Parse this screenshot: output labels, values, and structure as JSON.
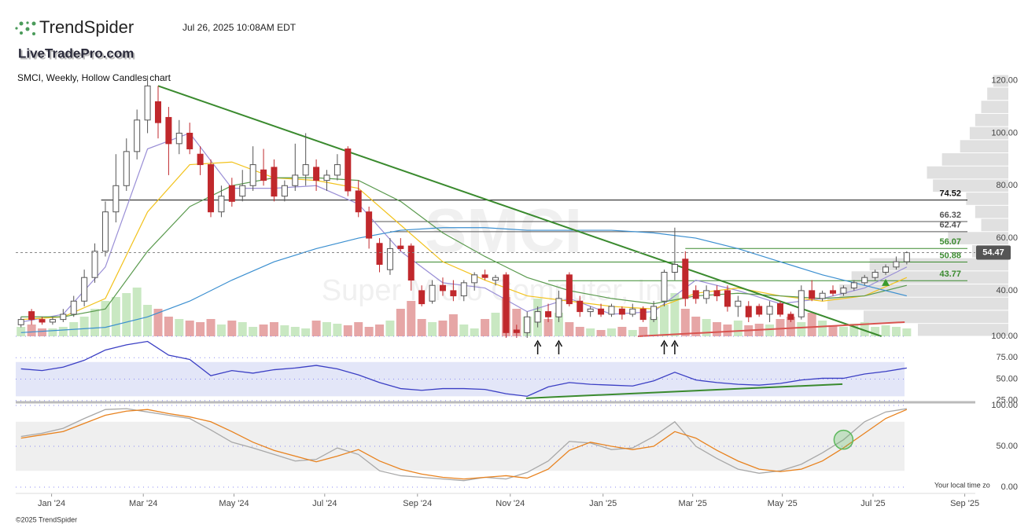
{
  "header": {
    "brand": "TrendSpider",
    "timestamp": "Jul 26, 2025 10:08AM EDT",
    "site": "LiveTradePro.com",
    "copyright": "©2025 TrendSpider",
    "timezone_note": "Your local time zo"
  },
  "chart_data": [
    {
      "type": "candlestick",
      "title": "SMCI, Weekly, Hollow Candles chart",
      "symbol": "SMCI",
      "company": "Super Micro Computer, Inc.",
      "xlim": [
        -0.5,
        90.5
      ],
      "xticks": [
        {
          "value": 2.9,
          "label": "Jan '24"
        },
        {
          "value": 11.6,
          "label": "Mar '24"
        },
        {
          "value": 20.2,
          "label": "May '24"
        },
        {
          "value": 28.8,
          "label": "Jul '24"
        },
        {
          "value": 37.6,
          "label": "Sep '24"
        },
        {
          "value": 46.4,
          "label": "Nov '24"
        },
        {
          "value": 55.2,
          "label": "Jan '25"
        },
        {
          "value": 63.7,
          "label": "Mar '25"
        },
        {
          "value": 72.2,
          "label": "May '25"
        },
        {
          "value": 80.8,
          "label": "Jul '25"
        },
        {
          "value": 89.5,
          "label": "Sep '25"
        }
      ],
      "ylim": [
        22.6,
        122.3
      ],
      "yticks": [
        {
          "value": 40,
          "label": "40.00"
        },
        {
          "value": 60,
          "label": "60.00"
        },
        {
          "value": 80,
          "label": "80.00"
        },
        {
          "value": 100,
          "label": "100.00"
        },
        {
          "value": 120,
          "label": "120.00"
        }
      ],
      "up_color": "#555555",
      "down_color": "#c0282c",
      "candles": [
        [
          27,
          30,
          26,
          29
        ],
        [
          32,
          33,
          27,
          29
        ],
        [
          29,
          30,
          27,
          28
        ],
        [
          28,
          30,
          27,
          29
        ],
        [
          29,
          33,
          28,
          31
        ],
        [
          31,
          38,
          30,
          36
        ],
        [
          36,
          48,
          34,
          45
        ],
        [
          45,
          58,
          43,
          55
        ],
        [
          55,
          74,
          53,
          70
        ],
        [
          70,
          92,
          66,
          80
        ],
        [
          80,
          98,
          78,
          93
        ],
        [
          93,
          109,
          90,
          105
        ],
        [
          105,
          122,
          100,
          118
        ],
        [
          112,
          118,
          98,
          104
        ],
        [
          106,
          110,
          84,
          96
        ],
        [
          96,
          105,
          92,
          100
        ],
        [
          100,
          104,
          92,
          94
        ],
        [
          92,
          95,
          84,
          88
        ],
        [
          88,
          90,
          68,
          70
        ],
        [
          70,
          80,
          68,
          76
        ],
        [
          80,
          83,
          72,
          74
        ],
        [
          76,
          86,
          74,
          80
        ],
        [
          80,
          95,
          78,
          88
        ],
        [
          86,
          94,
          80,
          82
        ],
        [
          87,
          90,
          74,
          76
        ],
        [
          76,
          82,
          74,
          80
        ],
        [
          80,
          96,
          78,
          84
        ],
        [
          84,
          100,
          80,
          88
        ],
        [
          87,
          90,
          78,
          82
        ],
        [
          82,
          86,
          78,
          84
        ],
        [
          84,
          92,
          82,
          88
        ],
        [
          94,
          95,
          76,
          78
        ],
        [
          78,
          82,
          68,
          70
        ],
        [
          70,
          72,
          56,
          60
        ],
        [
          58,
          60,
          47,
          50
        ],
        [
          48,
          60,
          46,
          56
        ],
        [
          57,
          60,
          55,
          56
        ],
        [
          57,
          58,
          40,
          44
        ],
        [
          40,
          42,
          34,
          35
        ],
        [
          36,
          44,
          35,
          42
        ],
        [
          42,
          45,
          38,
          40
        ],
        [
          40,
          44,
          36,
          38
        ],
        [
          38,
          44,
          36,
          43
        ],
        [
          43,
          47,
          40,
          46
        ],
        [
          46,
          48,
          44,
          45
        ],
        [
          44,
          46,
          42,
          45
        ],
        [
          46,
          47,
          22,
          24
        ],
        [
          25,
          27,
          22,
          24
        ],
        [
          24,
          32,
          22,
          30
        ],
        [
          28,
          34,
          26,
          32
        ],
        [
          32,
          35,
          28,
          30
        ],
        [
          30,
          40,
          28,
          37
        ],
        [
          46,
          47,
          34,
          35
        ],
        [
          36,
          38,
          30,
          32
        ],
        [
          32,
          34,
          30,
          33
        ],
        [
          33,
          35,
          30,
          31
        ],
        [
          31,
          35,
          30,
          34
        ],
        [
          33,
          34,
          29,
          31
        ],
        [
          31,
          35,
          30,
          33
        ],
        [
          33,
          34,
          28,
          29
        ],
        [
          29,
          36,
          28,
          34
        ],
        [
          36,
          48,
          34,
          47
        ],
        [
          47,
          64,
          44,
          50
        ],
        [
          52,
          55,
          34,
          37
        ],
        [
          40,
          42,
          35,
          37
        ],
        [
          37,
          42,
          35,
          40
        ],
        [
          40,
          42,
          36,
          38
        ],
        [
          40,
          42,
          32,
          34
        ],
        [
          34,
          38,
          30,
          36
        ],
        [
          34,
          36,
          28,
          30
        ],
        [
          34,
          35,
          30,
          31
        ],
        [
          31,
          36,
          28,
          34
        ],
        [
          35,
          36,
          30,
          31
        ],
        [
          31,
          32,
          28,
          29
        ],
        [
          30,
          42,
          29,
          40
        ],
        [
          40,
          44,
          36,
          37
        ],
        [
          37,
          40,
          36,
          39
        ],
        [
          40,
          42,
          38,
          39
        ],
        [
          39,
          42,
          38,
          41
        ],
        [
          41,
          44,
          40,
          43
        ],
        [
          43,
          46,
          42,
          45
        ],
        [
          45,
          48,
          44,
          47
        ],
        [
          47,
          50,
          46,
          49
        ],
        [
          49,
          53,
          48,
          51
        ],
        [
          51,
          55,
          50,
          54.47
        ]
      ],
      "volume": {
        "up_color": "#c9e8c2",
        "down_color": "#e6a6a6",
        "values": [
          12,
          15,
          10,
          10,
          12,
          18,
          25,
          35,
          45,
          50,
          55,
          62,
          40,
          35,
          25,
          22,
          20,
          18,
          22,
          15,
          20,
          18,
          12,
          15,
          18,
          14,
          12,
          10,
          20,
          18,
          16,
          14,
          18,
          12,
          15,
          20,
          35,
          45,
          22,
          18,
          20,
          28,
          15,
          10,
          22,
          30,
          50,
          35,
          25,
          48,
          22,
          30,
          18,
          12,
          10,
          8,
          10,
          12,
          8,
          12,
          25,
          40,
          55,
          35,
          25,
          22,
          18,
          15,
          20,
          14,
          16,
          15,
          22,
          25,
          18,
          30,
          20,
          14,
          12,
          16,
          18,
          12,
          14,
          12,
          10
        ]
      },
      "volume_profile": {
        "color": "#d6d6d6",
        "bins": [
          22.6,
          27.5,
          32.5,
          37.5,
          42.5,
          47.5,
          52.5,
          57.5,
          62.5,
          67.5,
          72.5,
          77.5,
          82.5,
          87.5,
          92.5,
          97.5,
          102.5,
          107.5,
          112.5,
          117.5,
          122.3
        ],
        "values": [
          150,
          240,
          300,
          280,
          260,
          230,
          60,
          100,
          45,
          55,
          70,
          125,
          135,
          110,
          80,
          64,
          55,
          45,
          35,
          25
        ]
      },
      "ma_x": [
        0,
        4,
        8,
        12,
        16,
        20,
        24,
        28,
        32,
        36,
        40,
        44,
        48,
        52,
        56,
        60,
        64,
        68,
        72,
        76,
        80,
        84
      ],
      "moving_averages": [
        {
          "color": "#9a8fd6",
          "values": [
            28,
            31,
            49,
            94,
            100,
            79,
            79,
            80,
            73,
            55,
            43,
            41,
            32,
            37,
            31,
            32,
            44,
            40,
            35,
            37,
            41,
            49
          ]
        },
        {
          "color": "#f2c21b",
          "values": [
            29,
            30,
            37,
            70,
            88,
            89,
            83,
            82,
            79,
            65,
            51,
            44,
            38,
            36,
            34,
            33,
            39,
            41,
            38,
            36,
            38,
            45
          ]
        },
        {
          "color": "#5a9a4e",
          "values": [
            30,
            30,
            33,
            55,
            72,
            80,
            83,
            83,
            82,
            74,
            62,
            53,
            45,
            40,
            37,
            35,
            38,
            39,
            38,
            37,
            38,
            42
          ]
        },
        {
          "color": "#3b8fd0",
          "values": [
            24,
            25,
            26,
            30,
            36,
            44,
            51,
            56,
            60,
            63,
            64,
            64,
            63,
            63,
            63,
            62,
            60,
            56,
            51,
            46,
            42,
            38
          ]
        }
      ],
      "levels": [
        {
          "value": 74.52,
          "start": 7.6,
          "color": "#111111"
        },
        {
          "value": 66.32,
          "start": 33,
          "color": "#555555"
        },
        {
          "value": 62.47,
          "start": 35,
          "color": "#555555"
        },
        {
          "value": 56.07,
          "start": 63,
          "color": "#3a8a2e"
        },
        {
          "value": 50.88,
          "start": 37,
          "color": "#3a8a2e"
        },
        {
          "value": 43.77,
          "start": 50,
          "color": "#3a8a2e"
        }
      ],
      "last_price": 54.47,
      "trendlines": [
        {
          "from": [
            13,
            118
          ],
          "to": [
            81.6,
            22.6
          ],
          "color": "#3a8a2e"
        },
        {
          "from": [
            58.5,
            22.6
          ],
          "to": [
            83.8,
            28
          ],
          "color": "#d9534f"
        }
      ],
      "arrows": [
        49,
        51,
        61,
        62
      ],
      "signal": {
        "x": 82,
        "y": 43,
        "color": "#3a9a2e"
      }
    },
    {
      "type": "line",
      "x": [
        0,
        2,
        4,
        6,
        8,
        10,
        12,
        14,
        16,
        18,
        20,
        22,
        24,
        26,
        28,
        30,
        32,
        34,
        36,
        38,
        40,
        42,
        44,
        46,
        48,
        50,
        52,
        54,
        56,
        58,
        60,
        62,
        64,
        66,
        68,
        70,
        72,
        74,
        76,
        78,
        80,
        82,
        84
      ],
      "values": [
        62,
        60,
        64,
        72,
        84,
        90,
        94,
        78,
        73,
        54,
        60,
        57,
        61,
        63,
        66,
        62,
        55,
        46,
        39,
        37,
        39,
        39,
        38,
        33,
        30,
        41,
        46,
        44,
        43,
        42,
        48,
        58,
        49,
        46,
        44,
        43,
        45,
        49,
        51,
        51,
        56,
        59,
        63
      ],
      "color": "#3b3fc4",
      "band": [
        30,
        70
      ],
      "band_color": "#e3e6f8",
      "ylim": [
        23,
        100
      ],
      "yticks": [
        {
          "value": 25,
          "label": "25.00"
        },
        {
          "value": 50,
          "label": "50.00"
        },
        {
          "value": 75,
          "label": "75.00"
        },
        {
          "value": 100,
          "label": "100.00"
        }
      ],
      "trendline": {
        "from": [
          47.9,
          27.7
        ],
        "to": [
          77.9,
          44.2
        ],
        "color": "#3a8a2e"
      }
    },
    {
      "type": "line",
      "x": [
        0,
        2,
        4,
        6,
        8,
        10,
        12,
        14,
        16,
        18,
        20,
        22,
        24,
        26,
        28,
        30,
        32,
        34,
        36,
        38,
        40,
        42,
        44,
        46,
        48,
        50,
        52,
        54,
        56,
        58,
        60,
        62,
        64,
        66,
        68,
        70,
        72,
        74,
        76,
        78,
        80,
        82,
        84
      ],
      "series": [
        {
          "color": "#a8a8a8",
          "values": [
            62,
            66,
            72,
            84,
            95,
            96,
            92,
            88,
            84,
            70,
            55,
            48,
            40,
            32,
            34,
            48,
            40,
            20,
            14,
            12,
            10,
            8,
            12,
            10,
            18,
            32,
            56,
            54,
            46,
            48,
            62,
            80,
            50,
            35,
            22,
            17,
            20,
            28,
            42,
            58,
            80,
            92,
            96
          ]
        },
        {
          "color": "#e8821e",
          "values": [
            60,
            64,
            68,
            78,
            88,
            93,
            95,
            90,
            86,
            80,
            68,
            55,
            45,
            38,
            31,
            38,
            46,
            32,
            22,
            16,
            12,
            10,
            12,
            14,
            11,
            22,
            45,
            55,
            50,
            46,
            50,
            68,
            60,
            45,
            32,
            22,
            19,
            22,
            32,
            48,
            66,
            84,
            95
          ]
        }
      ],
      "band": [
        20,
        80
      ],
      "band_color": "#efefef",
      "ylim": [
        0,
        100
      ],
      "yticks": [
        {
          "value": 0,
          "label": "0.00"
        },
        {
          "value": 50,
          "label": "50.00"
        },
        {
          "value": 100,
          "label": "100.00"
        }
      ],
      "signal": {
        "x": 78,
        "y": 58,
        "color": "#5cb85c"
      }
    }
  ]
}
